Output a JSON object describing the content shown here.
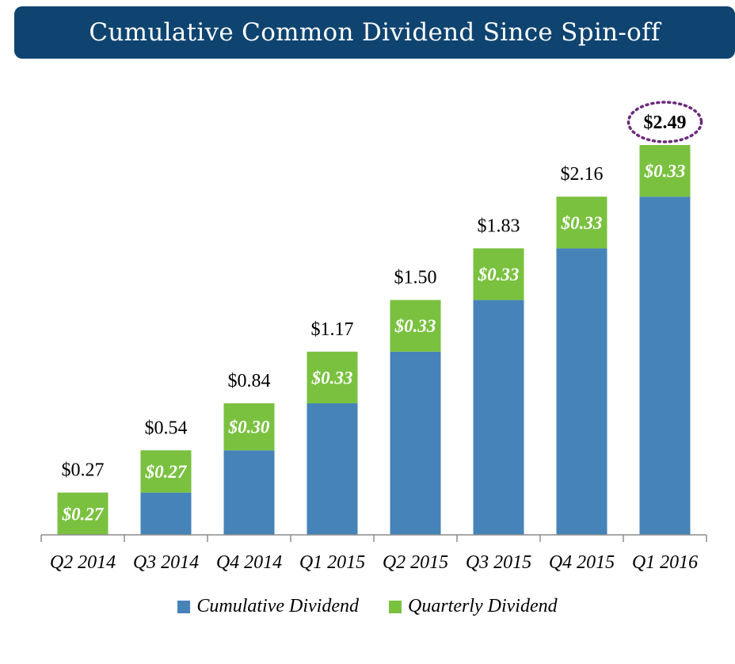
{
  "title": "Cumulative Common Dividend Since Spin-off",
  "chart_data": {
    "type": "bar",
    "stacked": true,
    "categories": [
      "Q2 2014",
      "Q3 2014",
      "Q4 2014",
      "Q1 2015",
      "Q2 2015",
      "Q3 2015",
      "Q4 2015",
      "Q1 2016"
    ],
    "series": [
      {
        "name": "Cumulative Dividend",
        "color": "#4683b8",
        "values": [
          0,
          0.27,
          0.54,
          0.84,
          1.17,
          1.5,
          1.83,
          2.16
        ]
      },
      {
        "name": "Quarterly Dividend",
        "color": "#7ac13f",
        "values": [
          0.27,
          0.27,
          0.3,
          0.33,
          0.33,
          0.33,
          0.33,
          0.33
        ]
      }
    ],
    "segment_labels": [
      "$0.27",
      "$0.27",
      "$0.30",
      "$0.33",
      "$0.33",
      "$0.33",
      "$0.33",
      "$0.33"
    ],
    "total_labels": [
      "$0.27",
      "$0.54",
      "$0.84",
      "$1.17",
      "$1.50",
      "$1.83",
      "$2.16",
      "$2.49"
    ],
    "highlighted_total_index": 7,
    "highlight_color": "#6b2a7a",
    "ylim": [
      0,
      2.49
    ],
    "grid": false,
    "legend_position": "bottom"
  }
}
